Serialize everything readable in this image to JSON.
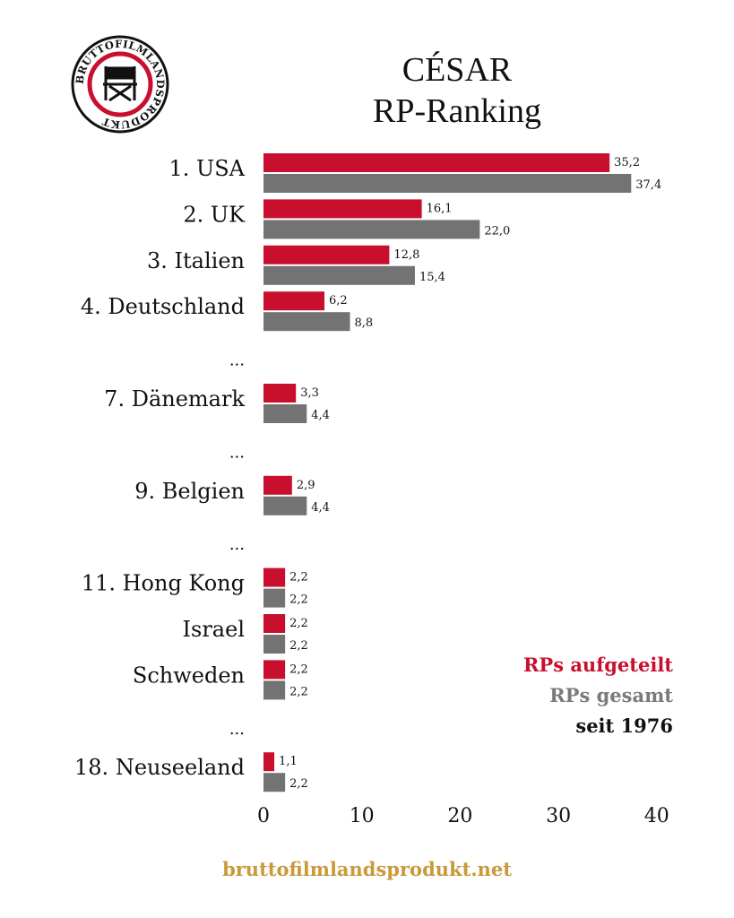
{
  "header": {
    "title_line1": "CÉSAR",
    "title_line2": "RP-Ranking"
  },
  "logo": {
    "ring_text": "BRUTTOFILMLANDSPRODUKT",
    "icon": "director-chair-icon"
  },
  "legend": {
    "split": "RPs aufgeteilt",
    "total": "RPs gesamt",
    "since": "seit 1976"
  },
  "footer": {
    "url": "bruttofilmlandsprodukt.net"
  },
  "colors": {
    "split": "#c8102e",
    "total": "#737373",
    "footer": "#c99a3a"
  },
  "chart_data": {
    "type": "bar",
    "orientation": "horizontal",
    "categories": [
      "1. USA",
      "2. UK",
      "3. Italien",
      "4. Deutschland",
      "...",
      "7. Dänemark",
      "...",
      "9. Belgien",
      "...",
      "11. Hong Kong",
      "Israel",
      "Schweden",
      "...",
      "18. Neuseeland"
    ],
    "series": [
      {
        "name": "RPs aufgeteilt",
        "values": [
          35.2,
          16.1,
          12.8,
          6.2,
          null,
          3.3,
          null,
          2.9,
          null,
          2.2,
          2.2,
          2.2,
          null,
          1.1
        ]
      },
      {
        "name": "RPs gesamt",
        "values": [
          37.4,
          22.0,
          15.4,
          8.8,
          null,
          4.4,
          null,
          4.4,
          null,
          2.2,
          2.2,
          2.2,
          null,
          2.2
        ]
      }
    ],
    "value_labels": {
      "split": [
        "35,2",
        "16,1",
        "12,8",
        "6,2",
        null,
        "3,3",
        null,
        "2,9",
        null,
        "2,2",
        "2,2",
        "2,2",
        null,
        "1,1"
      ],
      "total": [
        "37,4",
        "22,0",
        "15,4",
        "8,8",
        null,
        "4,4",
        null,
        "4,4",
        null,
        "2,2",
        "2,2",
        "2,2",
        null,
        "2,2"
      ]
    },
    "xlim": [
      0,
      40
    ],
    "x_ticks": [
      0,
      10,
      20,
      30,
      40
    ],
    "x_tick_labels": [
      "0",
      "10",
      "20",
      "30",
      "40"
    ],
    "grid": false,
    "legend_position": "bottom-right"
  }
}
